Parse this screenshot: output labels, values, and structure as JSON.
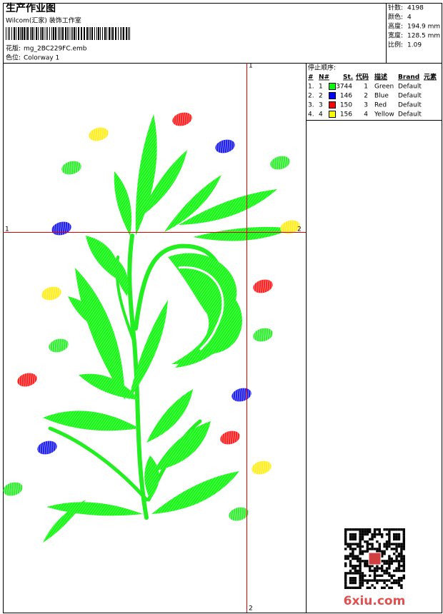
{
  "header": {
    "title": "生产作业图",
    "studio": "Wilcom(汇家) 装饰工作室",
    "design_label": "花版:",
    "design": "mg_2BC229FC.emb",
    "colorway_label": "色位:",
    "colorway": "Colorway 1"
  },
  "stats": [
    {
      "label": "针数:",
      "value": "4198"
    },
    {
      "label": "颜色:",
      "value": "4"
    },
    {
      "label": "高度:",
      "value": "194.9 mm"
    },
    {
      "label": "宽度:",
      "value": "128.5 mm"
    },
    {
      "label": "比例:",
      "value": "1.09"
    }
  ],
  "stop_sequence": {
    "title": "停止顺序:",
    "columns": [
      "#",
      "N#",
      "St.",
      "代码",
      "描述",
      "Brand",
      "元素"
    ],
    "rows": [
      {
        "index": "1.",
        "needle": "1",
        "color": "#00ff00",
        "stitches": "3744",
        "code": "1",
        "description": "Green",
        "brand": "Default"
      },
      {
        "index": "2.",
        "needle": "2",
        "color": "#0000ff",
        "stitches": "146",
        "code": "2",
        "description": "Blue",
        "brand": "Default"
      },
      {
        "index": "3.",
        "needle": "3",
        "color": "#ff0000",
        "stitches": "150",
        "code": "3",
        "description": "Red",
        "brand": "Default"
      },
      {
        "index": "4.",
        "needle": "4",
        "color": "#ffff00",
        "stitches": "156",
        "code": "4",
        "description": "Yellow",
        "brand": "Default"
      }
    ]
  },
  "crosshair": {
    "top": "1",
    "bottom": "2",
    "left": "1",
    "right": "2"
  },
  "watermark": "6xiu.com"
}
